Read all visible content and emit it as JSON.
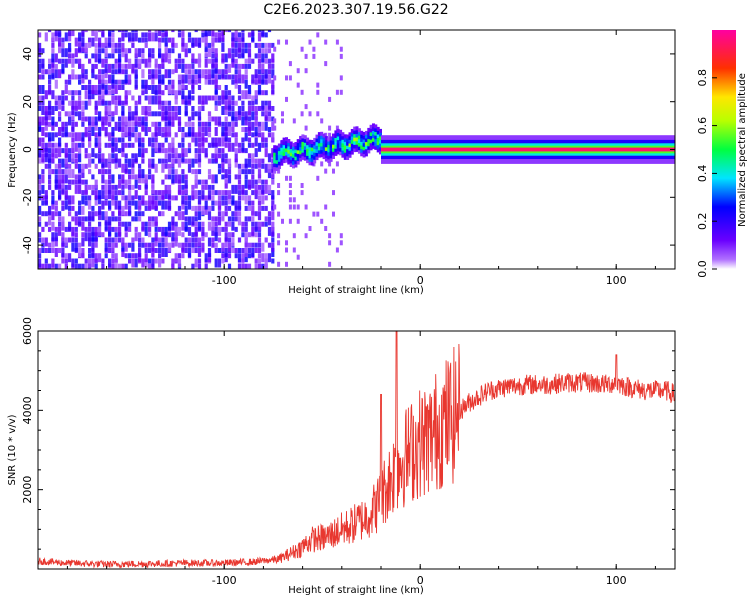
{
  "figure": {
    "title": "C2E6.2023.307.19.56.G22"
  },
  "chart_data": [
    {
      "type": "heatmap",
      "title": "C2E6.2023.307.19.56.G22",
      "xlabel": "Height of straight line (km)",
      "ylabel": "Frequency (Hz)",
      "xlim": [
        -195,
        130
      ],
      "ylim": [
        -50,
        50
      ],
      "x_ticks": [
        -100,
        0,
        100
      ],
      "x_tick_labels": [
        "-100",
        "0",
        "100"
      ],
      "y_ticks": [
        -40,
        -20,
        0,
        20,
        40
      ],
      "y_tick_labels": [
        "-40",
        "-20",
        "0",
        "20",
        "40"
      ],
      "colorbar": {
        "label": "Normalized spectral amplitude",
        "range": [
          0,
          1
        ],
        "ticks": [
          0.0,
          0.2,
          0.4,
          0.6,
          0.8
        ],
        "tick_labels": [
          "0.0",
          "0.2",
          "0.4",
          "0.6",
          "0.8"
        ],
        "colormap": "rainbow (purple-blue-cyan-green-yellow-red-magenta)"
      },
      "features": [
        {
          "x_range": [
            -195,
            -75
          ],
          "description": "broadband noise",
          "freq_range": [
            -50,
            50
          ],
          "amplitude": 0.15
        },
        {
          "x_range": [
            -75,
            -20
          ],
          "description": "wandering tone",
          "freq_range": [
            -5,
            6
          ],
          "amplitude": 0.45
        },
        {
          "x_range": [
            -20,
            130
          ],
          "description": "steady tone",
          "frequency": 0,
          "amplitude": 0.95
        }
      ],
      "grid": false
    },
    {
      "type": "line",
      "xlabel": "Height of straight line (km)",
      "ylabel": "SNR (10 * v/v)",
      "xlim": [
        -195,
        130
      ],
      "ylim": [
        0,
        6000
      ],
      "x_ticks": [
        -100,
        0,
        100
      ],
      "x_tick_labels": [
        "-100",
        "0",
        "100"
      ],
      "y_ticks": [
        2000,
        4000,
        6000
      ],
      "y_tick_labels": [
        "2000",
        "4000",
        "6000"
      ],
      "color": "#e8372f",
      "x": [
        -195,
        -180,
        -160,
        -140,
        -120,
        -100,
        -85,
        -72,
        -62,
        -55,
        -48,
        -42,
        -35,
        -28,
        -22,
        -18,
        -14,
        -10,
        -6,
        0,
        5,
        10,
        18,
        25,
        35,
        45,
        55,
        65,
        75,
        85,
        95,
        100,
        105,
        115,
        125,
        130
      ],
      "y": [
        200,
        150,
        120,
        130,
        150,
        150,
        180,
        250,
        500,
        750,
        800,
        950,
        1100,
        1300,
        1600,
        2000,
        2400,
        2700,
        2900,
        3200,
        3300,
        3600,
        3900,
        4200,
        4500,
        4600,
        4650,
        4650,
        4700,
        4700,
        4650,
        4700,
        4600,
        4500,
        4500,
        4400
      ],
      "annotations": [
        {
          "x": -12,
          "y": 6000,
          "note": "spike"
        },
        {
          "x": -20,
          "y": 4400,
          "note": "spike"
        },
        {
          "x": 100,
          "y": 5400,
          "note": "spike"
        }
      ],
      "grid": false
    }
  ]
}
